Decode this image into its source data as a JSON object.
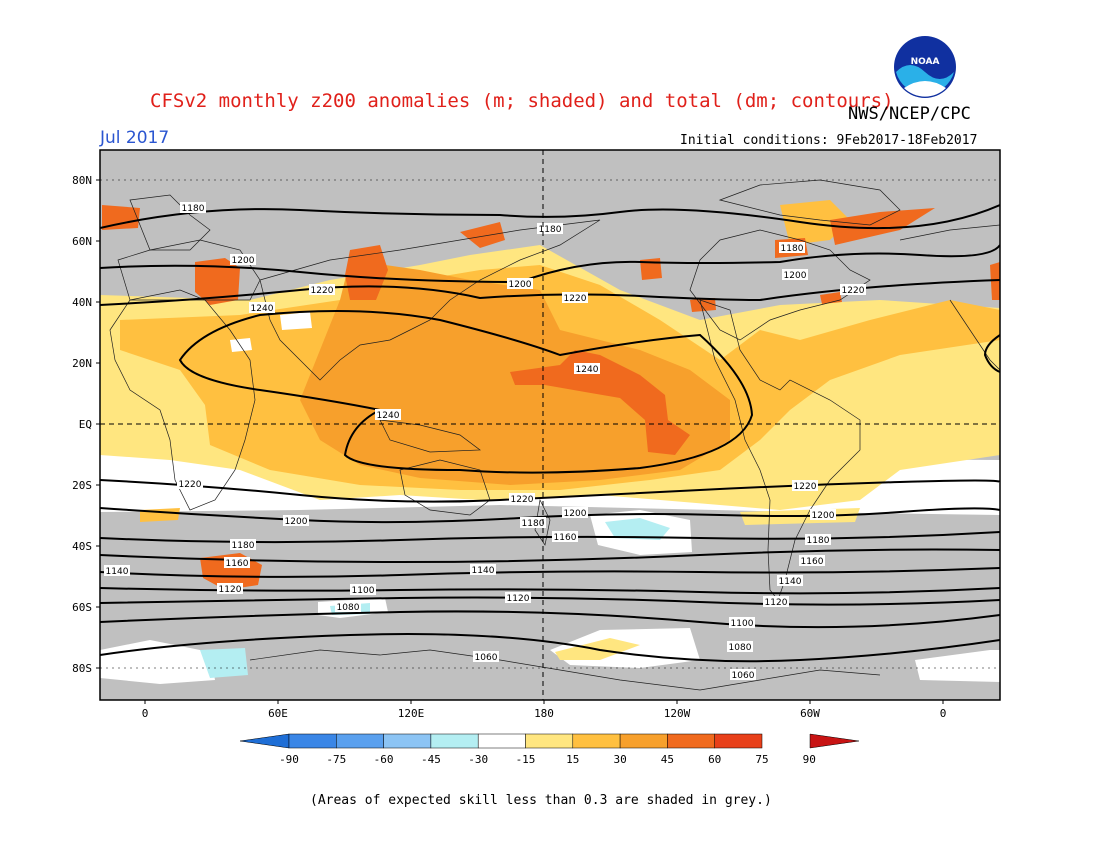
{
  "header": {
    "title": "CFSv2 monthly z200 anomalies (m; shaded) and total (dm; contours)",
    "agency": "NWS/NCEP/CPC",
    "valid_month": "Jul 2017",
    "initial_conditions": "Initial conditions: 9Feb2017-18Feb2017",
    "logo_text": "NOAA"
  },
  "map": {
    "lat_labels": [
      "80N",
      "60N",
      "40N",
      "20N",
      "EQ",
      "20S",
      "40S",
      "60S",
      "80S"
    ],
    "lon_labels": [
      "0",
      "60E",
      "120E",
      "180",
      "120W",
      "60W",
      "0"
    ],
    "contour_labels": [
      "1180",
      "1180",
      "1200",
      "1220",
      "1240",
      "1200",
      "1220",
      "1240",
      "1180",
      "1200",
      "1220",
      "1240",
      "1220",
      "1200",
      "1220",
      "1200",
      "1180",
      "1160",
      "1200",
      "1220",
      "1180",
      "1160",
      "1140",
      "1140",
      "1120",
      "1100",
      "1080",
      "1120",
      "1100",
      "1080",
      "1060",
      "1060",
      "1140",
      "1120",
      "1160",
      "1180"
    ]
  },
  "colorbar": {
    "labels": [
      "-90",
      "-75",
      "-60",
      "-45",
      "-30",
      "-15",
      "15",
      "30",
      "45",
      "60",
      "75",
      "90"
    ],
    "colors": [
      "#1e6ed6",
      "#3a86e6",
      "#5aa0ee",
      "#8cc4f4",
      "#b4eef2",
      "#ffffff",
      "#ffe680",
      "#ffc040",
      "#f7a02c",
      "#f06a1e",
      "#e8401a",
      "#c81414"
    ]
  },
  "footnote": "(Areas of expected skill less than 0.3 are shaded in grey.)",
  "colors": {
    "grey_skill": "#c0c0c0",
    "anom_15_30": "#ffe680",
    "anom_30_45": "#ffc040",
    "anom_45_60": "#f7a02c",
    "anom_60_75": "#f06a1e",
    "anom_neg": "#b4eef2"
  }
}
